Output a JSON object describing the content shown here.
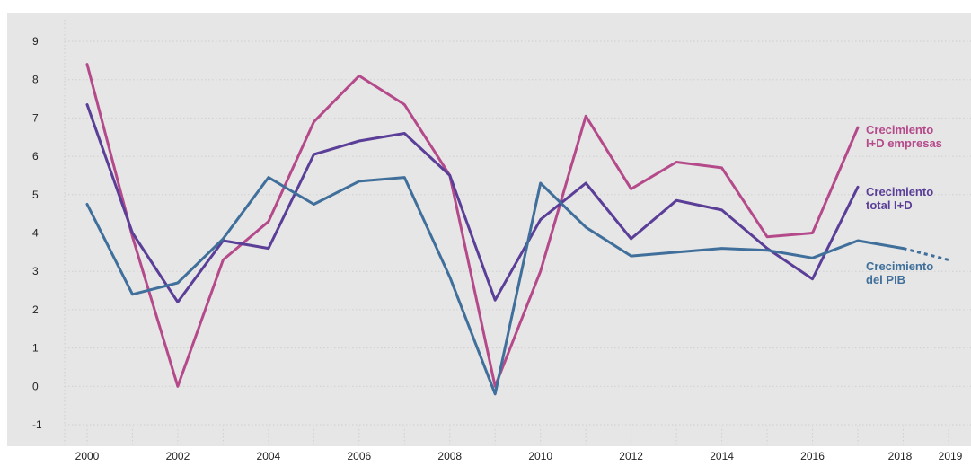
{
  "chart_data": {
    "type": "line",
    "x": [
      2000,
      2001,
      2002,
      2003,
      2004,
      2005,
      2006,
      2007,
      2008,
      2009,
      2010,
      2011,
      2012,
      2013,
      2014,
      2015,
      2016,
      2017,
      2018,
      2019
    ],
    "x_tick_labels": [
      "2000",
      "2002",
      "2004",
      "2006",
      "2008",
      "2010",
      "2012",
      "2014",
      "2016",
      "2018",
      "2019"
    ],
    "y_tick_labels": [
      "9",
      "8",
      "7",
      "6",
      "5",
      "4",
      "3",
      "2",
      "1",
      "0",
      "-1"
    ],
    "ylim": [
      -1.5,
      9.5
    ],
    "xlim": [
      1999.5,
      2019.5
    ],
    "grid": true,
    "series": [
      {
        "id": "empresas",
        "label_lines": [
          "Crecimiento",
          "I+D empresas"
        ],
        "color": "#b54a8b",
        "values": [
          8.4,
          3.9,
          0.0,
          3.3,
          4.3,
          6.9,
          8.1,
          7.35,
          5.5,
          0.0,
          3.0,
          7.05,
          5.15,
          5.85,
          5.7,
          3.9,
          4.0,
          6.75,
          null,
          null
        ]
      },
      {
        "id": "total",
        "label_lines": [
          "Crecimiento",
          "total I+D"
        ],
        "color": "#5a3e97",
        "values": [
          7.35,
          4.0,
          2.2,
          3.8,
          3.6,
          6.05,
          6.4,
          6.6,
          5.5,
          2.25,
          4.35,
          5.3,
          3.85,
          4.85,
          4.6,
          3.6,
          2.8,
          5.2,
          null,
          null
        ]
      },
      {
        "id": "pib",
        "label_lines": [
          "Crecimiento",
          "del PIB"
        ],
        "color": "#3f6f9a",
        "values": [
          4.75,
          2.4,
          2.7,
          3.85,
          5.45,
          4.75,
          5.35,
          5.45,
          2.85,
          -0.2,
          5.3,
          4.15,
          3.4,
          3.5,
          3.6,
          3.55,
          3.35,
          3.8,
          3.6,
          3.3
        ],
        "projected_from": 2018
      }
    ]
  }
}
